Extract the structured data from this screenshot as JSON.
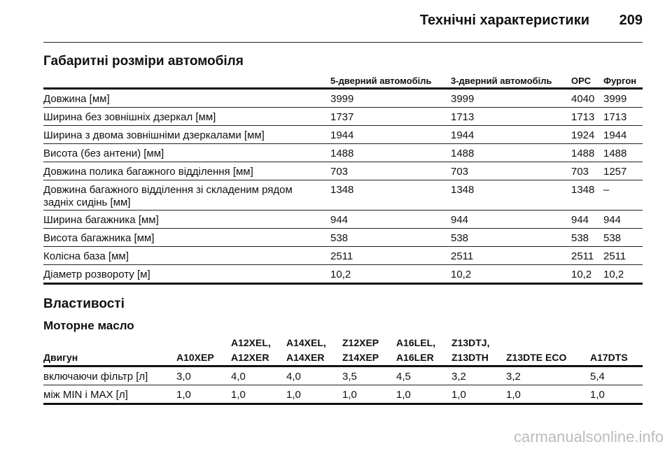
{
  "header": {
    "title": "Технічні характеристики",
    "page": "209"
  },
  "dimensions": {
    "title": "Габаритні розміри автомобіля",
    "columns": [
      "5-дверний автомобіль",
      "3-дверний автомобіль",
      "OPC",
      "Фургон"
    ],
    "rows": [
      [
        [
          "Довжина [мм]"
        ],
        "3999",
        "3999",
        "4040",
        "3999"
      ],
      [
        [
          "Ширина без зовнішніх дзеркал [мм]"
        ],
        "1737",
        "1713",
        "1713",
        "1713"
      ],
      [
        [
          "Ширина з двома зовнішніми дзеркалами [мм]"
        ],
        "1944",
        "1944",
        "1924",
        "1944"
      ],
      [
        [
          "Висота (без антени) [мм]"
        ],
        "1488",
        "1488",
        "1488",
        "1488"
      ],
      [
        [
          "Довжина полика багажного відділення [мм]"
        ],
        "703",
        "703",
        "703",
        "1257"
      ],
      [
        [
          "Довжина багажного відділення зі складеним рядом",
          "задніх сидінь [мм]"
        ],
        "1348",
        "1348",
        "1348",
        "–"
      ],
      [
        [
          "Ширина багажника [мм]"
        ],
        "944",
        "944",
        "944",
        "944"
      ],
      [
        [
          "Висота багажника [мм]"
        ],
        "538",
        "538",
        "538",
        "538"
      ],
      [
        [
          "Колісна база [мм]"
        ],
        "2511",
        "2511",
        "2511",
        "2511"
      ],
      [
        [
          "Діаметр розвороту [м]"
        ],
        "10,2",
        "10,2",
        "10,2",
        "10,2"
      ]
    ]
  },
  "properties": {
    "title": "Властивості",
    "subtitle": "Моторне масло",
    "columns": [
      [
        "Двигун"
      ],
      [
        "A10XEP"
      ],
      [
        "A12XEL,",
        "A12XER"
      ],
      [
        "A14XEL,",
        "A14XER"
      ],
      [
        "Z12XEP",
        "Z14XEP"
      ],
      [
        "A16LEL,",
        "A16LER"
      ],
      [
        "Z13DTJ,",
        "Z13DTH"
      ],
      [
        "Z13DTE ECO"
      ],
      [
        "A17DTS"
      ]
    ],
    "rows": [
      [
        "включаючи фільтр [л]",
        "3,0",
        "4,0",
        "4,0",
        "3,5",
        "4,5",
        "3,2",
        "3,2",
        "5,4"
      ],
      [
        "між MIN і MAX [л]",
        "1,0",
        "1,0",
        "1,0",
        "1,0",
        "1,0",
        "1,0",
        "1,0",
        "1,0"
      ]
    ]
  },
  "watermark": "carmanualsonline.info"
}
